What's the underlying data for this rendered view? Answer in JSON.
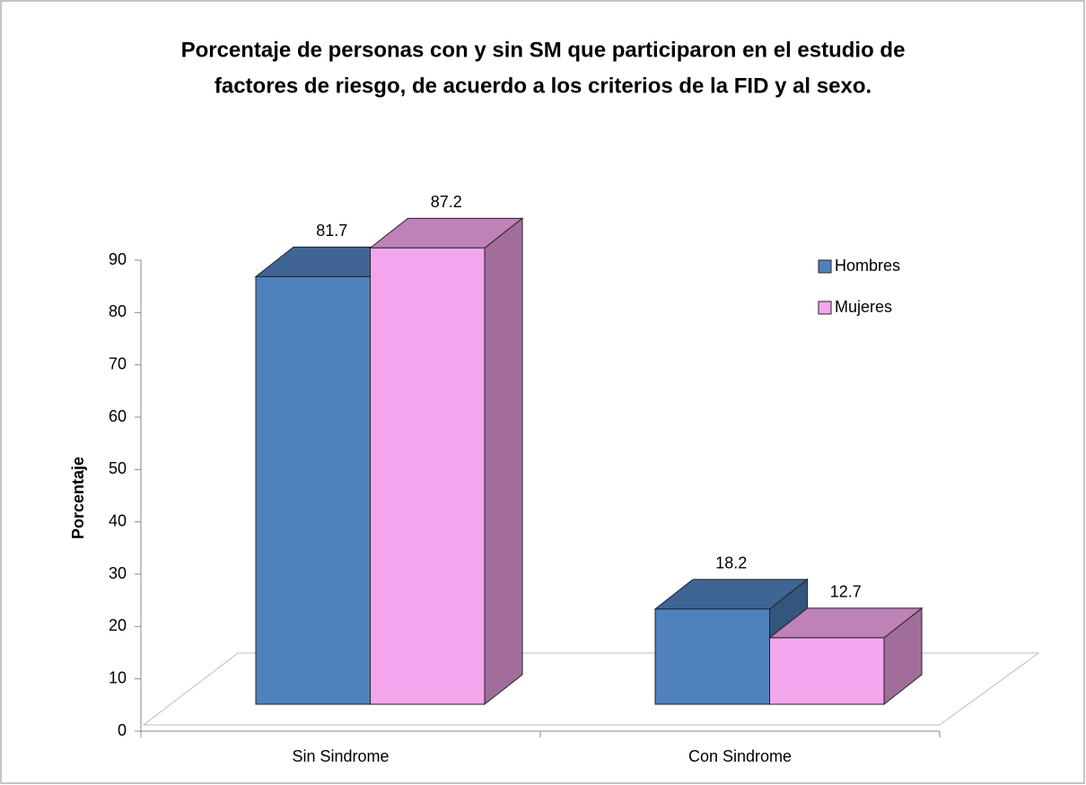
{
  "chart_data": {
    "type": "bar3d",
    "title": [
      "Porcentaje de personas con y sin SM que participaron en el estudio de",
      "factores de riesgo, de acuerdo a los criterios de la FID y al sexo."
    ],
    "y_label": "Porcentaje",
    "categories": [
      "Sin Sindrome",
      "Con Sindrome"
    ],
    "series": [
      {
        "name": "Hombres",
        "color": "#4f81bd",
        "values": [
          81.7,
          18.2
        ]
      },
      {
        "name": "Mujeres",
        "color": "#f4a6ec",
        "values": [
          87.2,
          12.7
        ]
      }
    ],
    "ylim": [
      0,
      90
    ],
    "yticks": [
      0,
      10,
      20,
      30,
      40,
      50,
      60,
      70,
      80,
      90
    ],
    "legend": "right"
  }
}
